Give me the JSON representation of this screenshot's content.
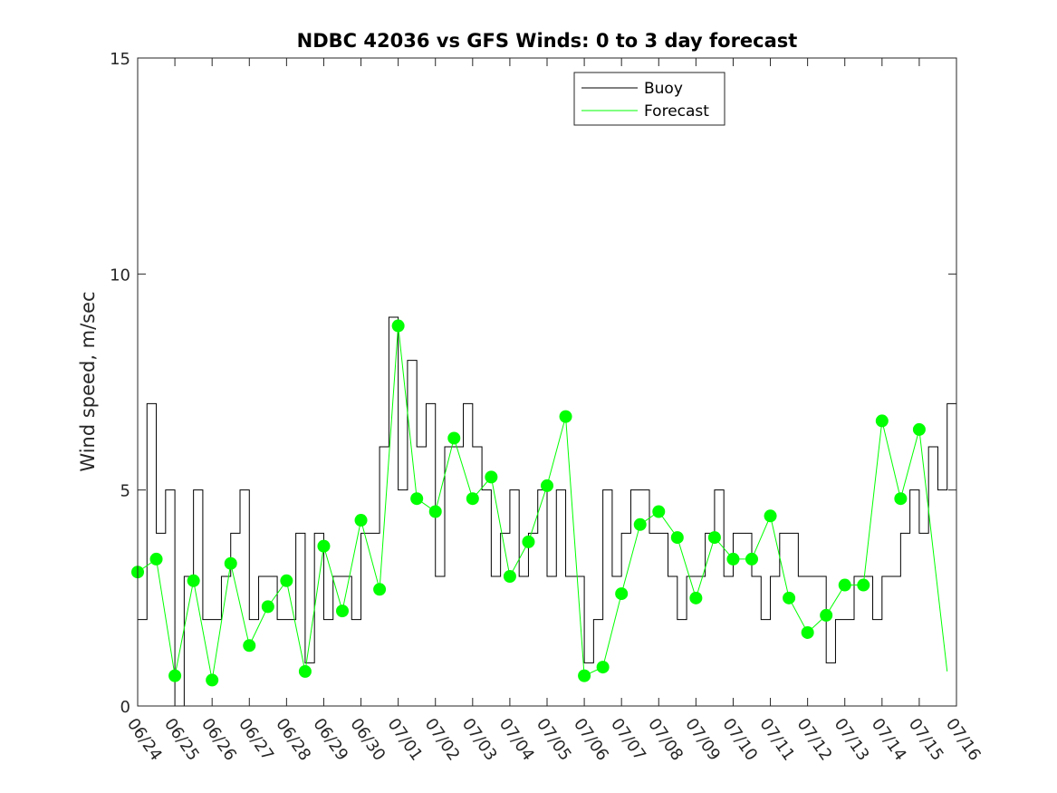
{
  "chart_data": {
    "type": "line",
    "title": "NDBC 42036 vs GFS Winds: 0 to 3 day forecast",
    "xlabel": "",
    "ylabel": "Wind speed, m/sec",
    "ylim": [
      0,
      15
    ],
    "yticks": [
      0,
      5,
      10,
      15
    ],
    "x_start": "06/24",
    "x_end": "07/16",
    "x_tick_labels": [
      "06/24",
      "06/25",
      "06/26",
      "06/27",
      "06/28",
      "06/29",
      "06/30",
      "07/01",
      "07/02",
      "07/03",
      "07/04",
      "07/05",
      "07/06",
      "07/07",
      "07/08",
      "07/09",
      "07/10",
      "07/11",
      "07/12",
      "07/13",
      "07/14",
      "07/15",
      "07/16"
    ],
    "grid": false,
    "legend_position": "top-center",
    "colors": {
      "buoy": "#000000",
      "forecast": "#00ff00"
    },
    "series": [
      {
        "name": "Buoy",
        "x_unit": "days after 06/24",
        "x": [
          0,
          0.25,
          0.5,
          0.75,
          1,
          1.25,
          1.5,
          1.75,
          2,
          2.25,
          2.5,
          2.75,
          3,
          3.25,
          3.5,
          3.75,
          4,
          4.25,
          4.5,
          4.75,
          5,
          5.25,
          5.5,
          5.75,
          6,
          6.25,
          6.5,
          6.75,
          7,
          7.25,
          7.5,
          7.75,
          8,
          8.25,
          8.5,
          8.75,
          9,
          9.25,
          9.5,
          9.75,
          10,
          10.25,
          10.5,
          10.75,
          11,
          11.25,
          11.5,
          11.75,
          12,
          12.25,
          12.5,
          12.75,
          13,
          13.25,
          13.5,
          13.75,
          14,
          14.25,
          14.5,
          14.75,
          15,
          15.25,
          15.5,
          15.75,
          16,
          16.25,
          16.5,
          16.75,
          17,
          17.25,
          17.5,
          17.75,
          18,
          18.25,
          18.5,
          18.75,
          19,
          19.25,
          19.5,
          19.75,
          20,
          20.25,
          20.5,
          20.75,
          21,
          21.25,
          21.5,
          21.75
        ],
        "values": [
          2,
          7,
          4,
          5,
          0,
          3,
          5,
          2,
          2,
          3,
          4,
          5,
          2,
          3,
          3,
          2,
          2,
          4,
          1,
          4,
          2,
          3,
          3,
          2,
          4,
          4,
          6,
          9,
          5,
          8,
          6,
          7,
          3,
          6,
          6,
          7,
          6,
          5,
          3,
          4,
          5,
          3,
          4,
          5,
          3,
          5,
          3,
          3,
          1,
          2,
          5,
          3,
          4,
          5,
          5,
          4,
          4,
          3,
          2,
          3,
          3,
          4,
          5,
          3,
          4,
          4,
          3,
          2,
          3,
          4,
          4,
          3,
          3,
          3,
          1,
          2,
          2,
          3,
          3,
          2,
          3,
          3,
          4,
          5,
          4,
          6,
          5,
          7
        ]
      },
      {
        "name": "Forecast",
        "description": "GFS forecast samples at each forecast cycle",
        "x_unit": "days after 06/24",
        "x": [
          0,
          0.5,
          1,
          1.5,
          2,
          2.5,
          3,
          3.5,
          4,
          4.5,
          5,
          5.5,
          6,
          6.5,
          7,
          7.5,
          8,
          8.5,
          9,
          9.5,
          10,
          10.5,
          11,
          11.5,
          12,
          12.5,
          13,
          13.5,
          14,
          14.5,
          15,
          15.5,
          16,
          16.5,
          17,
          17.5,
          18,
          18.5,
          19,
          19.5,
          20,
          20.5,
          21,
          21.75
        ],
        "values": [
          3.1,
          3.4,
          0.7,
          2.9,
          0.6,
          3.3,
          1.4,
          2.3,
          2.9,
          0.8,
          3.7,
          2.2,
          4.3,
          2.7,
          8.8,
          4.8,
          4.5,
          6.2,
          4.8,
          5.3,
          3.0,
          3.8,
          5.1,
          6.7,
          0.7,
          0.9,
          2.6,
          4.2,
          4.5,
          3.9,
          2.5,
          3.9,
          3.4,
          3.4,
          4.4,
          2.5,
          1.7,
          2.1,
          2.8,
          2.8,
          6.6,
          4.8,
          6.4,
          0.8
        ]
      }
    ],
    "forecast_markers": {
      "x": [
        0,
        0.5,
        1,
        1.5,
        2,
        2.5,
        3,
        3.5,
        4,
        4.5,
        5,
        5.5,
        6,
        6.5,
        7,
        7.5,
        8,
        8.5,
        9,
        9.5,
        10,
        10.5,
        11,
        11.5,
        12,
        12.5,
        13,
        13.5,
        14,
        14.5,
        15,
        15.5,
        16,
        16.5,
        17,
        17.5,
        18,
        18.5,
        19,
        19.5,
        20,
        20.5,
        21
      ],
      "values": [
        3.1,
        3.4,
        0.7,
        2.9,
        0.6,
        3.3,
        1.4,
        2.3,
        2.9,
        0.8,
        3.7,
        2.2,
        4.3,
        2.7,
        8.8,
        4.8,
        4.5,
        6.2,
        4.8,
        5.3,
        3.0,
        3.8,
        5.1,
        6.7,
        0.7,
        0.9,
        2.6,
        4.2,
        4.5,
        3.9,
        2.5,
        3.9,
        3.4,
        3.4,
        4.4,
        2.5,
        1.7,
        2.1,
        2.8,
        2.8,
        6.6,
        4.8,
        6.4
      ]
    }
  }
}
